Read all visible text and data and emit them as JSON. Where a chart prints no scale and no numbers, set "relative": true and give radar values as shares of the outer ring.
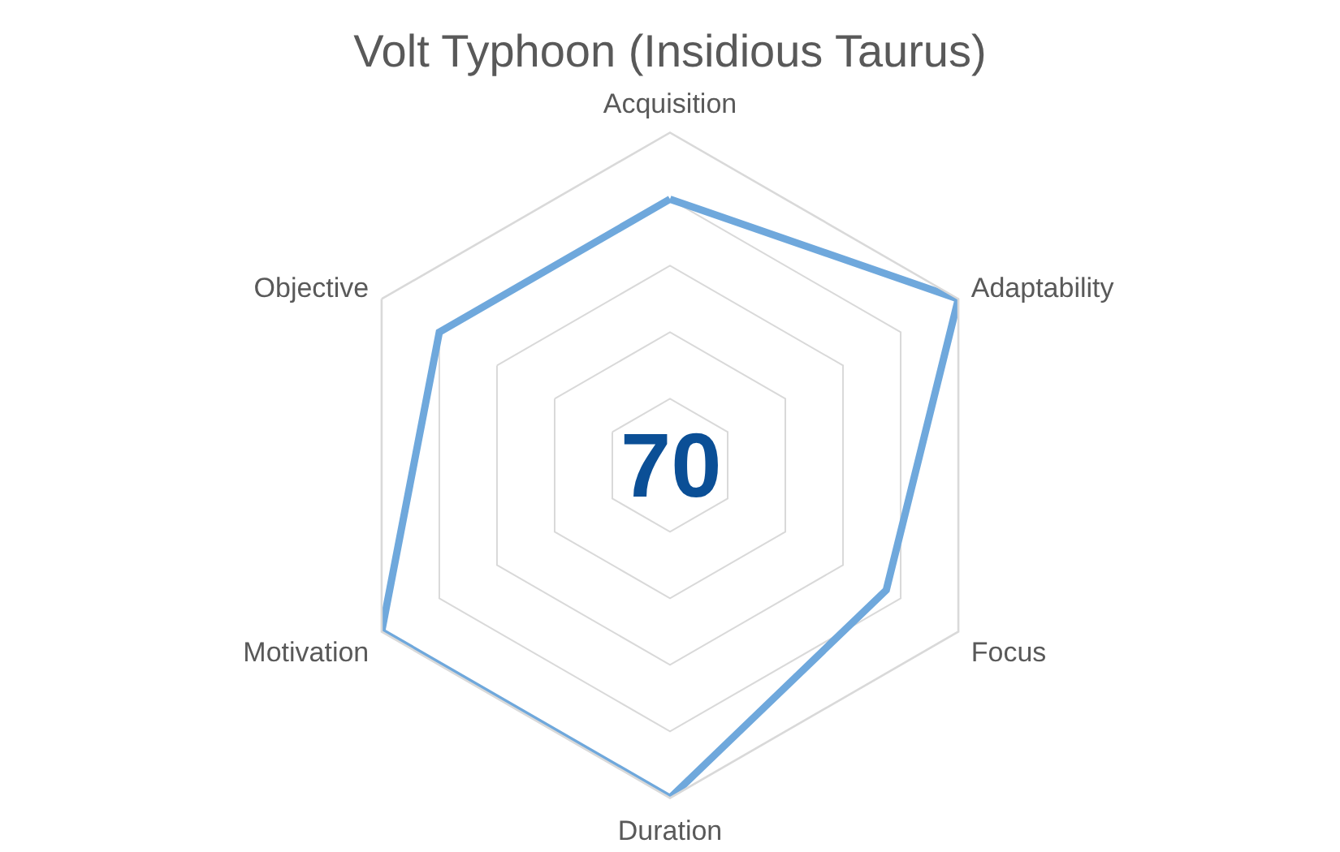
{
  "chart_data": {
    "type": "radar",
    "title": "Volt Typhoon (Insidious Taurus)",
    "categories": [
      "Acquisition",
      "Adaptability",
      "Focus",
      "Duration",
      "Motivation",
      "Objective"
    ],
    "relative": true,
    "series": [
      {
        "color": "#6fa8dc",
        "values": [
          0.8,
          1,
          0.75,
          1,
          1,
          0.8
        ]
      }
    ],
    "annotations": [
      "70"
    ],
    "grid": true
  }
}
